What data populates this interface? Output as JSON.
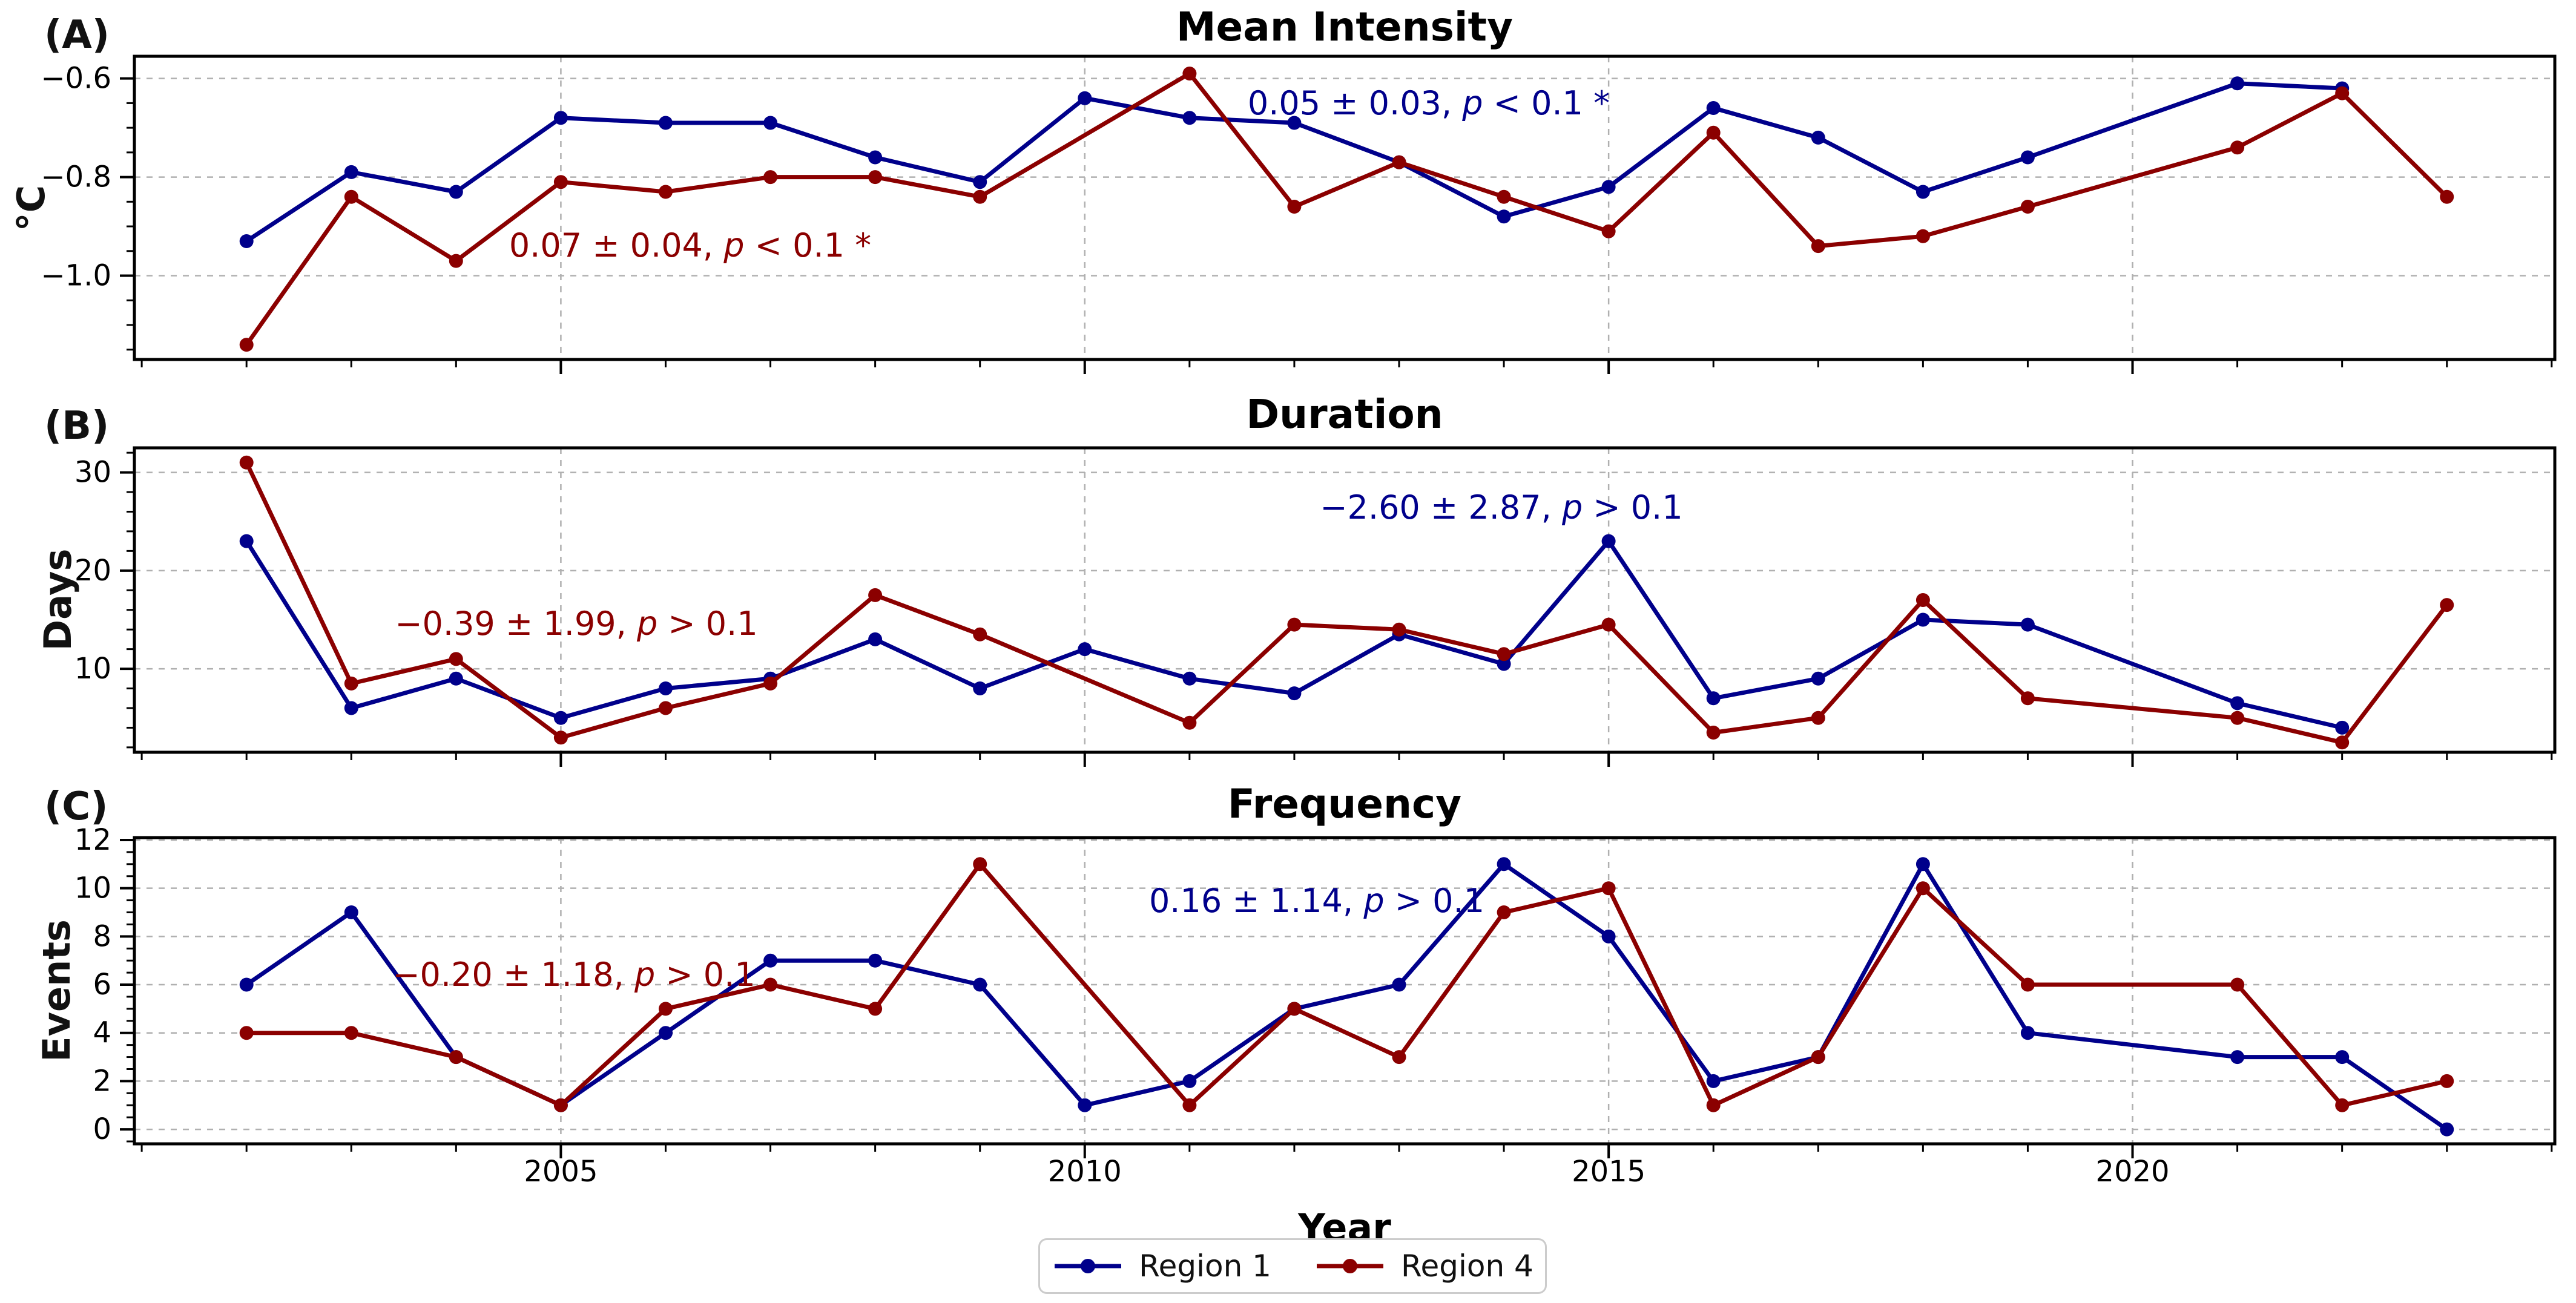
{
  "figure": {
    "xlabel": "Year"
  },
  "x_axis": {
    "xlim": [
      2000.93,
      2024.03
    ],
    "major_ticks": [
      2005,
      2010,
      2015,
      2020
    ],
    "major_tick_labels": [
      "2005",
      "2010",
      "2015",
      "2020"
    ],
    "minor_tick_years": [
      2001,
      2002,
      2003,
      2004,
      2006,
      2007,
      2008,
      2009,
      2011,
      2012,
      2013,
      2014,
      2016,
      2017,
      2018,
      2019,
      2021,
      2022,
      2023,
      2024
    ]
  },
  "colors": {
    "region1": "#00008B",
    "region4": "#8B0000",
    "grid": "#b0b0b0",
    "spine": "#000000",
    "background": "#ffffff"
  },
  "legend": {
    "items": [
      {
        "label": "Region 1",
        "color": "#00008B"
      },
      {
        "label": "Region 4",
        "color": "#8B0000"
      }
    ]
  },
  "chart_data": [
    {
      "type": "line",
      "panel_label": "(A)",
      "title": "Mean Intensity",
      "ylabel": "°C",
      "ylim": [
        -1.17,
        -0.555
      ],
      "yticks": [
        -0.6,
        -0.8,
        -1.0
      ],
      "ytick_labels": [
        "−0.6",
        "−0.8",
        "−1.0"
      ],
      "y_minor_step": 0.05,
      "grid": true,
      "annotations": [
        {
          "series": "Region 1",
          "color": "#00008B",
          "x": 2360,
          "y": 170,
          "text_before": "0.05 ± 0.03, ",
          "text_italic": "p",
          "text_after": " < 0.1 *"
        },
        {
          "series": "Region 4",
          "color": "#8B0000",
          "x": 1140,
          "y": 405,
          "text_before": "0.07 ± 0.04, ",
          "text_italic": "p",
          "text_after": " < 0.1 *"
        }
      ],
      "series": [
        {
          "name": "Region 1",
          "color": "#00008B",
          "points": [
            [
              2002,
              -0.93
            ],
            [
              2003,
              -0.79
            ],
            [
              2004,
              -0.83
            ],
            [
              2005,
              -0.68
            ],
            [
              2006,
              -0.69
            ],
            [
              2007,
              -0.69
            ],
            [
              2008,
              -0.76
            ],
            [
              2009,
              -0.81
            ],
            [
              2010,
              -0.64
            ],
            [
              2011,
              -0.68
            ],
            [
              2012,
              -0.69
            ],
            [
              2013,
              -0.77
            ],
            [
              2014,
              -0.88
            ],
            [
              2015,
              -0.82
            ],
            [
              2016,
              -0.66
            ],
            [
              2017,
              -0.72
            ],
            [
              2018,
              -0.83
            ],
            [
              2019,
              -0.76
            ],
            [
              2021,
              -0.61
            ],
            [
              2022,
              -0.62
            ]
          ]
        },
        {
          "name": "Region 4",
          "color": "#8B0000",
          "points": [
            [
              2002,
              -1.14
            ],
            [
              2003,
              -0.84
            ],
            [
              2004,
              -0.97
            ],
            [
              2005,
              -0.81
            ],
            [
              2006,
              -0.83
            ],
            [
              2007,
              -0.8
            ],
            [
              2008,
              -0.8
            ],
            [
              2009,
              -0.84
            ],
            [
              2011,
              -0.59
            ],
            [
              2012,
              -0.86
            ],
            [
              2013,
              -0.77
            ],
            [
              2014,
              -0.84
            ],
            [
              2015,
              -0.91
            ],
            [
              2016,
              -0.71
            ],
            [
              2017,
              -0.94
            ],
            [
              2018,
              -0.92
            ],
            [
              2019,
              -0.86
            ],
            [
              2021,
              -0.74
            ],
            [
              2022,
              -0.63
            ],
            [
              2023,
              -0.84
            ]
          ]
        }
      ]
    },
    {
      "type": "line",
      "panel_label": "(B)",
      "title": "Duration",
      "ylabel": "Days",
      "ylim": [
        1.5,
        32.5
      ],
      "yticks": [
        30,
        20,
        10
      ],
      "ytick_labels": [
        "30",
        "20",
        "10"
      ],
      "y_minor_step": 2,
      "grid": true,
      "annotations": [
        {
          "series": "Region 1",
          "color": "#00008B",
          "x": 2480,
          "y": 838,
          "text_before": "−2.60 ± 2.87, ",
          "text_italic": "p",
          "text_after": " > 0.1"
        },
        {
          "series": "Region 4",
          "color": "#8B0000",
          "x": 952,
          "y": 1030,
          "text_before": "−0.39 ± 1.99, ",
          "text_italic": "p",
          "text_after": " > 0.1"
        }
      ],
      "series": [
        {
          "name": "Region 1",
          "color": "#00008B",
          "points": [
            [
              2002,
              23
            ],
            [
              2003,
              6
            ],
            [
              2004,
              9
            ],
            [
              2005,
              5
            ],
            [
              2006,
              8
            ],
            [
              2007,
              9
            ],
            [
              2008,
              13
            ],
            [
              2009,
              8
            ],
            [
              2010,
              12
            ],
            [
              2011,
              9
            ],
            [
              2012,
              7.5
            ],
            [
              2013,
              13.5
            ],
            [
              2014,
              10.5
            ],
            [
              2015,
              23
            ],
            [
              2016,
              7
            ],
            [
              2017,
              9
            ],
            [
              2018,
              15
            ],
            [
              2019,
              14.5
            ],
            [
              2021,
              6.5
            ],
            [
              2022,
              4
            ]
          ]
        },
        {
          "name": "Region 4",
          "color": "#8B0000",
          "points": [
            [
              2002,
              31
            ],
            [
              2003,
              8.5
            ],
            [
              2004,
              11
            ],
            [
              2005,
              3
            ],
            [
              2006,
              6
            ],
            [
              2007,
              8.5
            ],
            [
              2008,
              17.5
            ],
            [
              2009,
              13.5
            ],
            [
              2011,
              4.5
            ],
            [
              2012,
              14.5
            ],
            [
              2013,
              14
            ],
            [
              2014,
              11.5
            ],
            [
              2015,
              14.5
            ],
            [
              2016,
              3.5
            ],
            [
              2017,
              5
            ],
            [
              2018,
              17
            ],
            [
              2019,
              7
            ],
            [
              2021,
              5
            ],
            [
              2022,
              2.5
            ],
            [
              2023,
              16.5
            ]
          ]
        }
      ]
    },
    {
      "type": "line",
      "panel_label": "(C)",
      "title": "Frequency",
      "ylabel": "Events",
      "ylim": [
        -0.6,
        12.1
      ],
      "yticks": [
        12,
        10,
        8,
        6,
        4,
        2,
        0
      ],
      "ytick_labels": [
        "12",
        "10",
        "8",
        "6",
        "4",
        "2",
        "0"
      ],
      "y_minor_step": 0.5,
      "grid": true,
      "show_x_tick_labels": true,
      "annotations": [
        {
          "series": "Region 1",
          "color": "#00008B",
          "x": 2175,
          "y": 1488,
          "text_before": "0.16 ± 1.14, ",
          "text_italic": "p",
          "text_after": " > 0.1"
        },
        {
          "series": "Region 4",
          "color": "#8B0000",
          "x": 948,
          "y": 1610,
          "text_before": "−0.20 ± 1.18, ",
          "text_italic": "p",
          "text_after": " > 0.1"
        }
      ],
      "series": [
        {
          "name": "Region 1",
          "color": "#00008B",
          "points": [
            [
              2002,
              6
            ],
            [
              2003,
              9
            ],
            [
              2004,
              3
            ],
            [
              2005,
              1
            ],
            [
              2006,
              4
            ],
            [
              2007,
              7
            ],
            [
              2008,
              7
            ],
            [
              2009,
              6
            ],
            [
              2010,
              1
            ],
            [
              2011,
              2
            ],
            [
              2012,
              5
            ],
            [
              2013,
              6
            ],
            [
              2014,
              11
            ],
            [
              2015,
              8
            ],
            [
              2016,
              2
            ],
            [
              2017,
              3
            ],
            [
              2018,
              11
            ],
            [
              2019,
              4
            ],
            [
              2021,
              3
            ],
            [
              2022,
              3
            ],
            [
              2023,
              0
            ]
          ]
        },
        {
          "name": "Region 4",
          "color": "#8B0000",
          "points": [
            [
              2002,
              4
            ],
            [
              2003,
              4
            ],
            [
              2004,
              3
            ],
            [
              2005,
              1
            ],
            [
              2006,
              5
            ],
            [
              2007,
              6
            ],
            [
              2008,
              5
            ],
            [
              2009,
              11
            ],
            [
              2011,
              1
            ],
            [
              2012,
              5
            ],
            [
              2013,
              3
            ],
            [
              2014,
              9
            ],
            [
              2015,
              10
            ],
            [
              2016,
              1
            ],
            [
              2017,
              3
            ],
            [
              2018,
              10
            ],
            [
              2019,
              6
            ],
            [
              2021,
              6
            ],
            [
              2022,
              1
            ],
            [
              2023,
              2
            ]
          ]
        }
      ]
    }
  ]
}
